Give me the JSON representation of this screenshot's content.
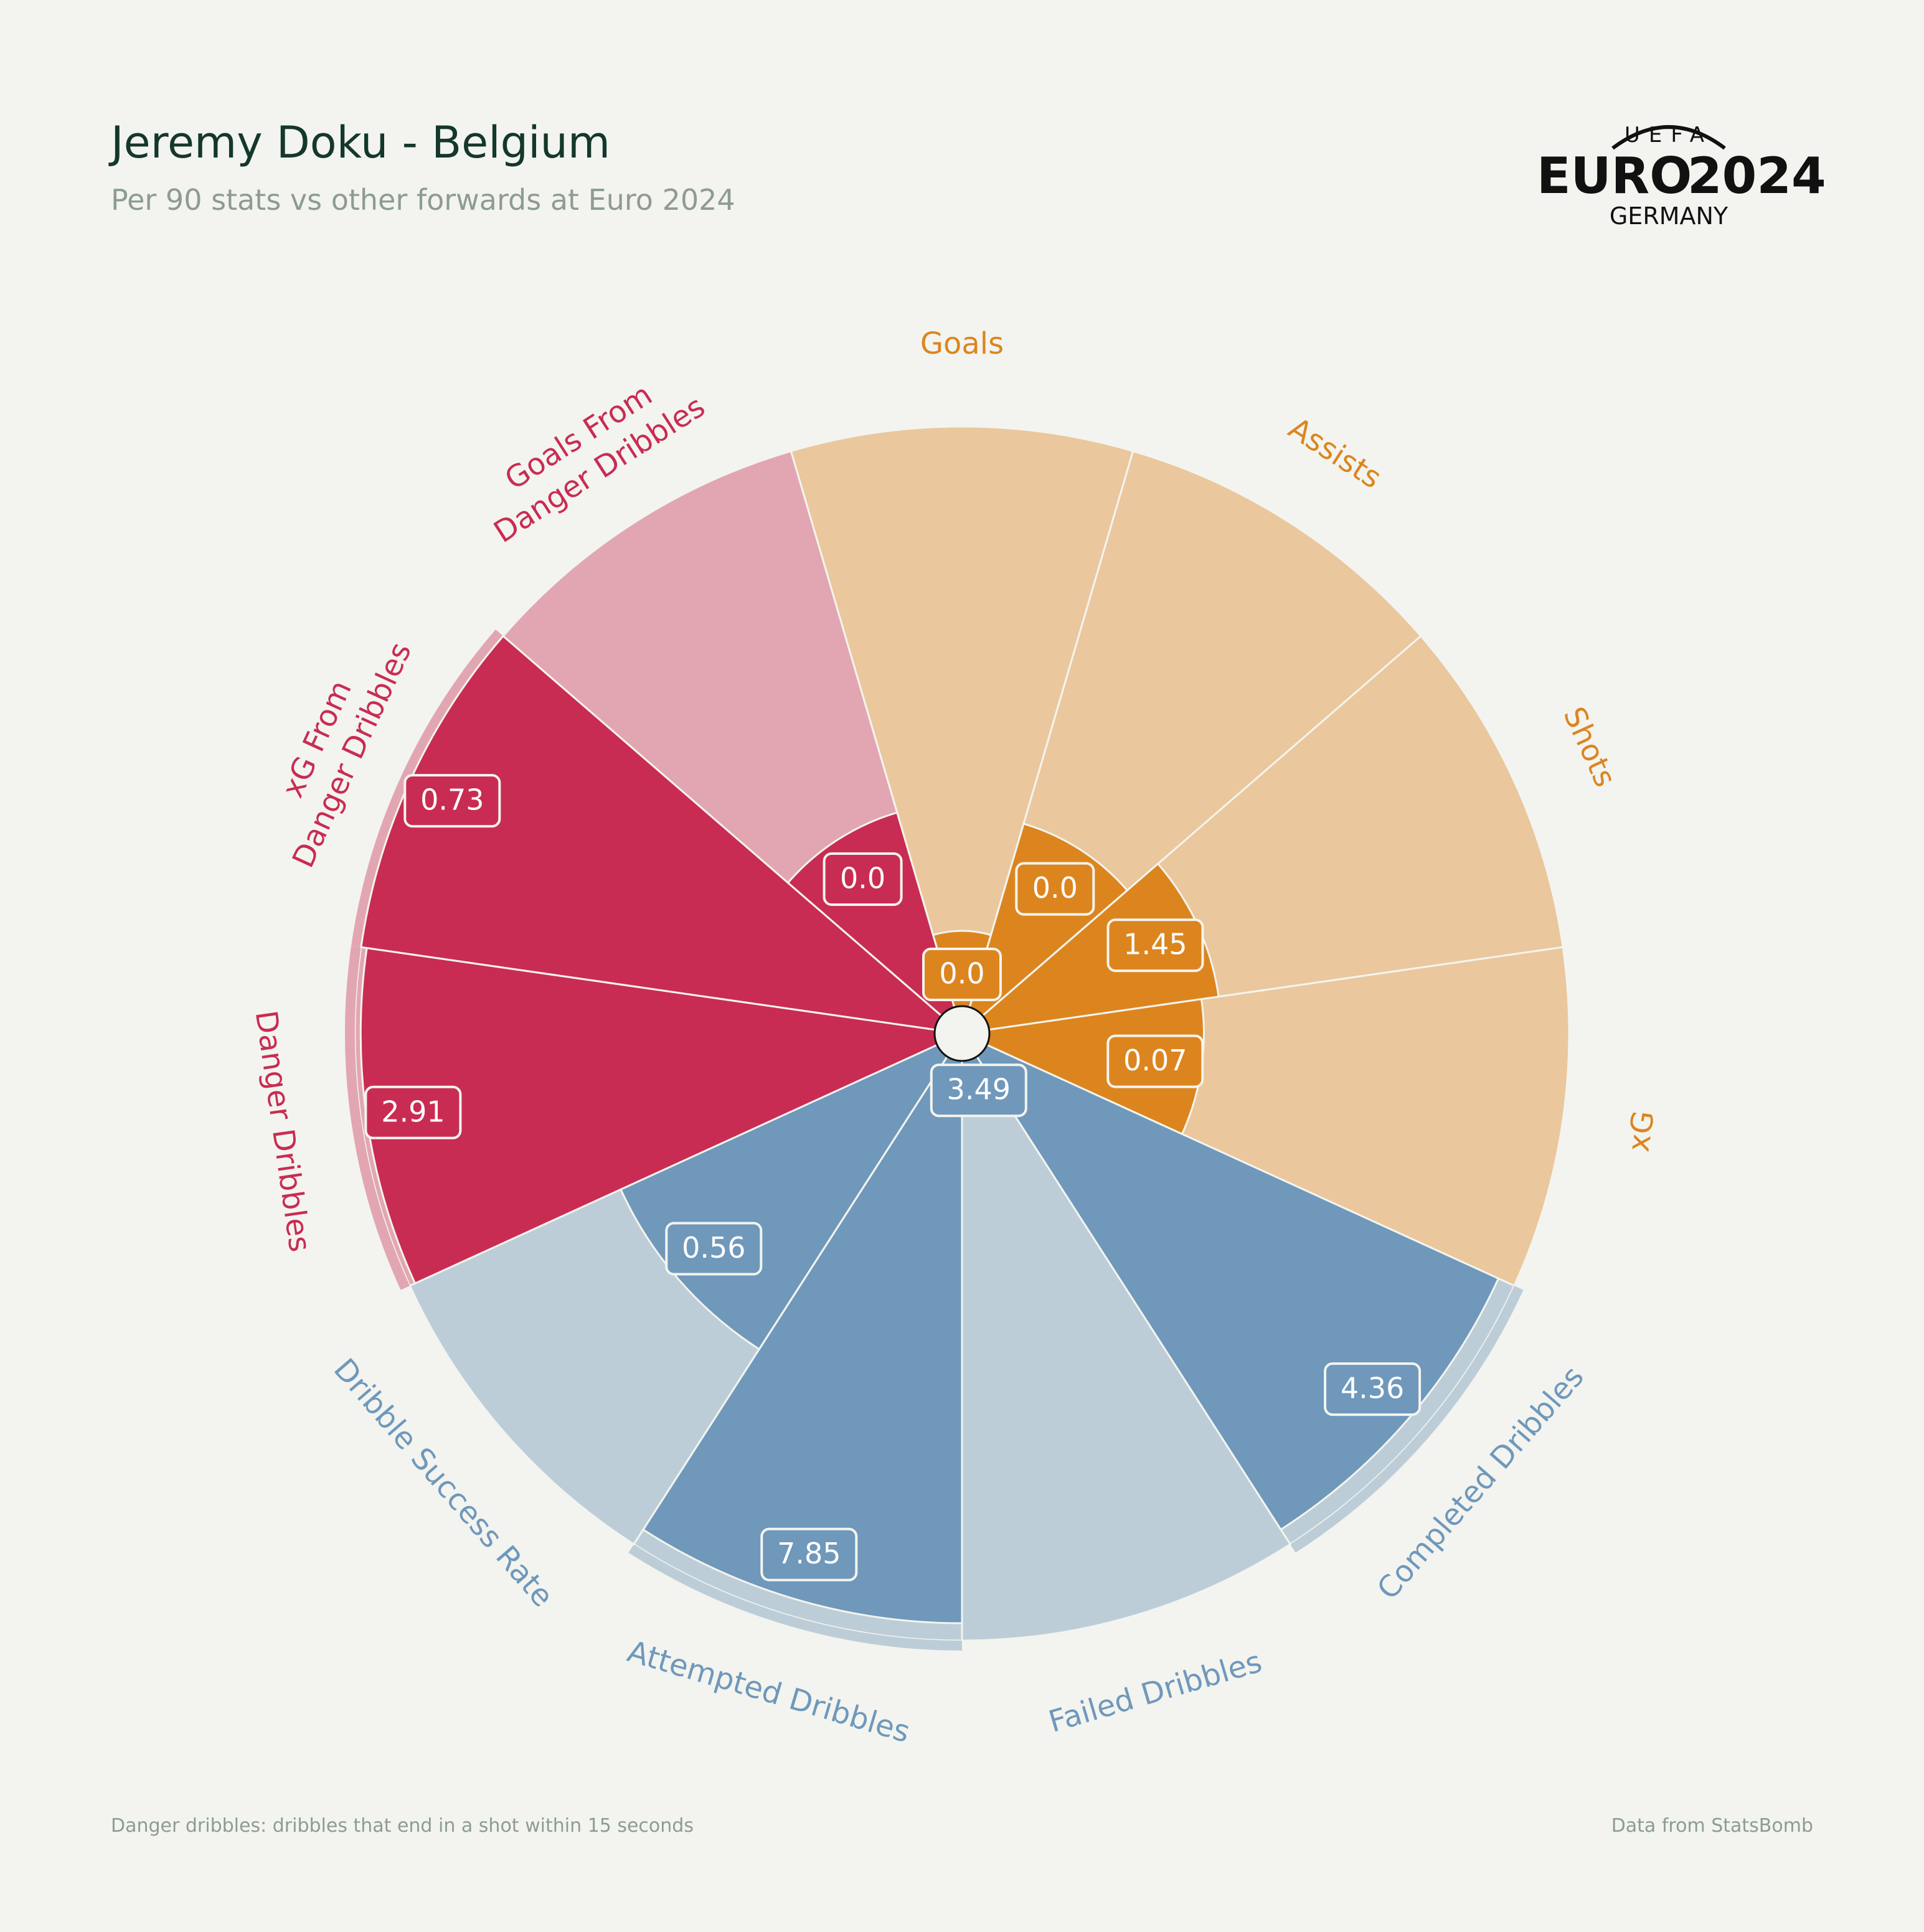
{
  "header": {
    "title": "Jeremy Doku - Belgium",
    "subtitle": "Per 90 stats vs other forwards at Euro 2024"
  },
  "logo": {
    "top": "UEFA",
    "main_left": "EURO",
    "main_right": "2024",
    "bottom": "GERMANY"
  },
  "footer": {
    "note": "Danger dribbles: dribbles that end in a shot within 15 seconds",
    "source": "Data from StatsBomb"
  },
  "colors": {
    "background": "#f3f4ef",
    "attacking_fill": "#dc851f",
    "attacking_bg": "#eac79c",
    "dribbling_fill": "#6f98bb",
    "dribbling_bg": "#bdcdd8",
    "danger_fill": "#c92c52",
    "danger_bg": "#e2a6b2"
  },
  "chart_data": {
    "type": "pizza",
    "value_scale": "percentile rank 0-100",
    "categories": [
      {
        "label": "Goals",
        "value_label": "0.0",
        "percentile": 13,
        "group": "attacking"
      },
      {
        "label": "Assists",
        "value_label": "0.0",
        "percentile": 33,
        "group": "attacking"
      },
      {
        "label": "Shots",
        "value_label": "1.45",
        "percentile": 40,
        "group": "attacking"
      },
      {
        "label": "xG",
        "value_label": "0.07",
        "percentile": 37,
        "group": "attacking"
      },
      {
        "label": "Completed Dribbles",
        "value_label": "4.36",
        "percentile": 97,
        "group": "dribbling"
      },
      {
        "label": "Failed Dribbles",
        "value_label": "3.49",
        "percentile": 5,
        "group": "dribbling"
      },
      {
        "label": "Attempted Dribbles",
        "value_label": "7.85",
        "percentile": 97,
        "group": "dribbling"
      },
      {
        "label": "Dribble Success Rate",
        "value_label": "0.56",
        "percentile": 60,
        "group": "dribbling"
      },
      {
        "label": "Danger Dribbles",
        "value_label": "2.91",
        "percentile": 99,
        "group": "danger"
      },
      {
        "label": "xG From Danger Dribbles",
        "label_lines": [
          "xG From",
          "Danger Dribbles"
        ],
        "value_label": "0.73",
        "percentile": 100,
        "group": "danger"
      },
      {
        "label": "Goals From Danger Dribbles",
        "label_lines": [
          "Goals From",
          "Danger Dribbles"
        ],
        "value_label": "0.0",
        "percentile": 35,
        "group": "danger"
      }
    ]
  }
}
